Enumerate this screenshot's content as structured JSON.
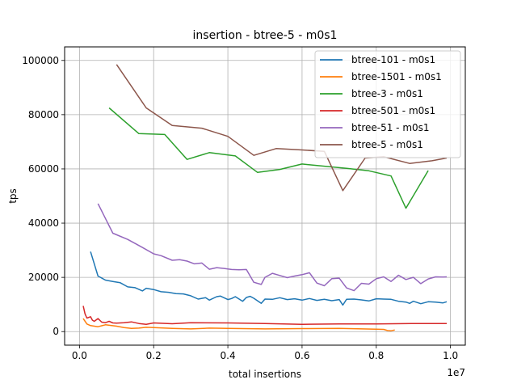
{
  "chart_data": {
    "type": "line",
    "title": "insertion - btree-5 - m0s1",
    "xlabel": "total insertions",
    "ylabel": "tps",
    "x_offset_label": "1e7",
    "xlim": [
      -0.04,
      1.04
    ],
    "ylim": [
      -5000,
      105000
    ],
    "x_ticks": [
      0.0,
      0.2,
      0.4,
      0.6,
      0.8,
      1.0
    ],
    "x_tick_labels": [
      "0.0",
      "0.2",
      "0.4",
      "0.6",
      "0.8",
      "1.0"
    ],
    "y_ticks": [
      0,
      20000,
      40000,
      60000,
      80000,
      100000
    ],
    "y_tick_labels": [
      "0",
      "20000",
      "40000",
      "60000",
      "80000",
      "100000"
    ],
    "grid": true,
    "legend_position": "top-right",
    "series": [
      {
        "name": "btree-101 - m0s1",
        "color": "#1f77b4",
        "x": [
          0.03,
          0.05,
          0.07,
          0.09,
          0.11,
          0.13,
          0.15,
          0.17,
          0.18,
          0.2,
          0.22,
          0.24,
          0.26,
          0.28,
          0.3,
          0.32,
          0.34,
          0.35,
          0.37,
          0.38,
          0.4,
          0.41,
          0.42,
          0.44,
          0.45,
          0.46,
          0.47,
          0.49,
          0.5,
          0.52,
          0.54,
          0.56,
          0.58,
          0.6,
          0.62,
          0.64,
          0.66,
          0.68,
          0.7,
          0.71,
          0.72,
          0.74,
          0.76,
          0.78,
          0.8,
          0.82,
          0.84,
          0.86,
          0.88,
          0.89,
          0.9,
          0.92,
          0.94,
          0.96,
          0.98,
          0.99
        ],
        "values": [
          29500,
          20500,
          19000,
          18500,
          18000,
          16500,
          16200,
          15000,
          16000,
          15500,
          14700,
          14500,
          14000,
          13900,
          13200,
          12000,
          12500,
          11600,
          12900,
          13100,
          11800,
          12200,
          12900,
          11200,
          12600,
          13000,
          12300,
          10400,
          12000,
          11900,
          12500,
          11800,
          12100,
          11600,
          12200,
          11500,
          11900,
          11400,
          11800,
          9800,
          11900,
          12000,
          11700,
          11300,
          12100,
          12000,
          11900,
          11200,
          10900,
          10400,
          11200,
          10300,
          11000,
          10900,
          10600,
          11000
        ]
      },
      {
        "name": "btree-1501 - m0s1",
        "color": "#ff7f0e",
        "x": [
          0.01,
          0.02,
          0.03,
          0.04,
          0.05,
          0.07,
          0.1,
          0.12,
          0.14,
          0.16,
          0.18,
          0.2,
          0.25,
          0.3,
          0.35,
          0.4,
          0.5,
          0.6,
          0.7,
          0.8,
          0.82,
          0.83,
          0.84,
          0.85
        ],
        "values": [
          4800,
          2800,
          2200,
          2000,
          1800,
          2500,
          2000,
          1500,
          1200,
          1300,
          1600,
          1500,
          1200,
          1000,
          1300,
          1200,
          1000,
          1100,
          1200,
          900,
          800,
          400,
          300,
          600
        ]
      },
      {
        "name": "btree-3 - m0s1",
        "color": "#2ca02c",
        "x": [
          0.08,
          0.16,
          0.23,
          0.29,
          0.35,
          0.42,
          0.48,
          0.54,
          0.6,
          0.66,
          0.72,
          0.78,
          0.84,
          0.88,
          0.94
        ],
        "values": [
          82500,
          73000,
          72700,
          63500,
          66000,
          64800,
          58700,
          59800,
          61800,
          61000,
          60200,
          59300,
          57400,
          45500,
          59400
        ]
      },
      {
        "name": "btree-501 - m0s1",
        "color": "#d62728",
        "x": [
          0.01,
          0.015,
          0.02,
          0.03,
          0.035,
          0.04,
          0.05,
          0.06,
          0.07,
          0.08,
          0.09,
          0.1,
          0.12,
          0.14,
          0.16,
          0.18,
          0.2,
          0.25,
          0.3,
          0.4,
          0.5,
          0.6,
          0.7,
          0.8,
          0.9,
          0.99
        ],
        "values": [
          9500,
          6500,
          5000,
          5500,
          4200,
          3800,
          4800,
          3500,
          3300,
          3800,
          3200,
          3100,
          3300,
          3600,
          3000,
          2700,
          3200,
          2900,
          3300,
          3200,
          3000,
          2700,
          2800,
          2800,
          3000,
          3000
        ]
      },
      {
        "name": "btree-51 - m0s1",
        "color": "#9467bd",
        "x": [
          0.05,
          0.09,
          0.13,
          0.15,
          0.17,
          0.2,
          0.22,
          0.25,
          0.27,
          0.29,
          0.31,
          0.33,
          0.35,
          0.37,
          0.39,
          0.41,
          0.43,
          0.45,
          0.47,
          0.49,
          0.5,
          0.52,
          0.54,
          0.56,
          0.58,
          0.6,
          0.62,
          0.64,
          0.66,
          0.68,
          0.7,
          0.72,
          0.74,
          0.76,
          0.78,
          0.8,
          0.82,
          0.84,
          0.86,
          0.88,
          0.9,
          0.92,
          0.94,
          0.96,
          0.98,
          0.99
        ],
        "values": [
          47200,
          36300,
          34000,
          32500,
          31000,
          28700,
          28000,
          26300,
          26500,
          26000,
          25000,
          25300,
          23000,
          23600,
          23300,
          22900,
          22800,
          22900,
          18200,
          17400,
          20000,
          21500,
          20700,
          19900,
          20500,
          21000,
          21700,
          17900,
          16900,
          19500,
          19700,
          16100,
          15100,
          17800,
          17500,
          19500,
          20200,
          18500,
          20800,
          19200,
          20000,
          17700,
          19400,
          20200,
          20100,
          20200
        ]
      },
      {
        "name": "btree-5 - m0s1",
        "color": "#8c564b",
        "x": [
          0.1,
          0.18,
          0.25,
          0.33,
          0.4,
          0.47,
          0.53,
          0.6,
          0.66,
          0.71,
          0.77,
          0.82,
          0.89,
          0.95,
          0.99
        ],
        "values": [
          98500,
          82500,
          76000,
          75000,
          72000,
          65000,
          67500,
          67000,
          66500,
          52000,
          64000,
          64500,
          62000,
          63000,
          64000
        ]
      }
    ]
  }
}
